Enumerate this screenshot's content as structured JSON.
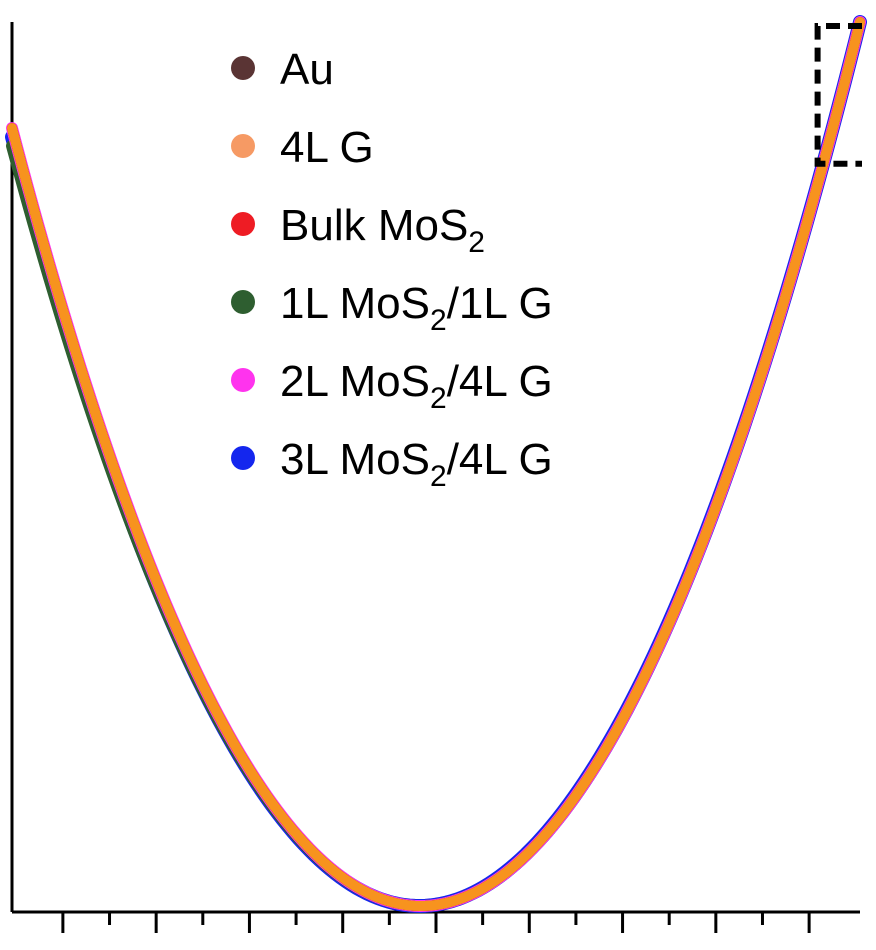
{
  "chart_data": {
    "type": "scatter",
    "title": "",
    "xlabel": "",
    "ylabel": "",
    "xlim": [
      0,
      1
    ],
    "ylim": [
      0,
      1
    ],
    "grid": false,
    "legend_position": "top-center",
    "x_ticks": {
      "major_count": 9,
      "minor_between": 1,
      "labels": []
    },
    "series": [
      {
        "name": "Au",
        "color": "#5a3434",
        "min_x": 0.482,
        "min_y": 0.0,
        "left_end_y": 0.88,
        "right_end_y": 1.0
      },
      {
        "name": "4L G",
        "color": "#f69a64",
        "min_x": 0.482,
        "min_y": 0.0,
        "left_end_y": 0.88,
        "right_end_y": 1.0
      },
      {
        "name": "Bulk MoS",
        "sub": "2",
        "suffix": "",
        "color": "#ee1c24",
        "min_x": 0.482,
        "min_y": 0.0,
        "left_end_y": 0.88,
        "right_end_y": 1.0
      },
      {
        "name": "1L MoS",
        "sub": "2",
        "suffix": "/1L G",
        "color": "#2e5e30",
        "min_x": 0.482,
        "min_y": 0.0,
        "left_end_y": 0.86,
        "right_end_y": 1.0
      },
      {
        "name": "2L MoS",
        "sub": "2",
        "suffix": "/4L G",
        "color": "#ff33ee",
        "min_x": 0.482,
        "min_y": 0.0,
        "left_end_y": 0.88,
        "right_end_y": 1.0
      },
      {
        "name": "3L MoS",
        "sub": "2",
        "suffix": "/4L G",
        "color": "#1426ee",
        "min_x": 0.48,
        "min_y": 0.0,
        "left_end_y": 0.87,
        "right_end_y": 1.0
      }
    ],
    "annotation": {
      "type": "dashed-box",
      "x_range": [
        0.95,
        1.0
      ],
      "y_range": [
        0.86,
        1.0
      ]
    }
  }
}
